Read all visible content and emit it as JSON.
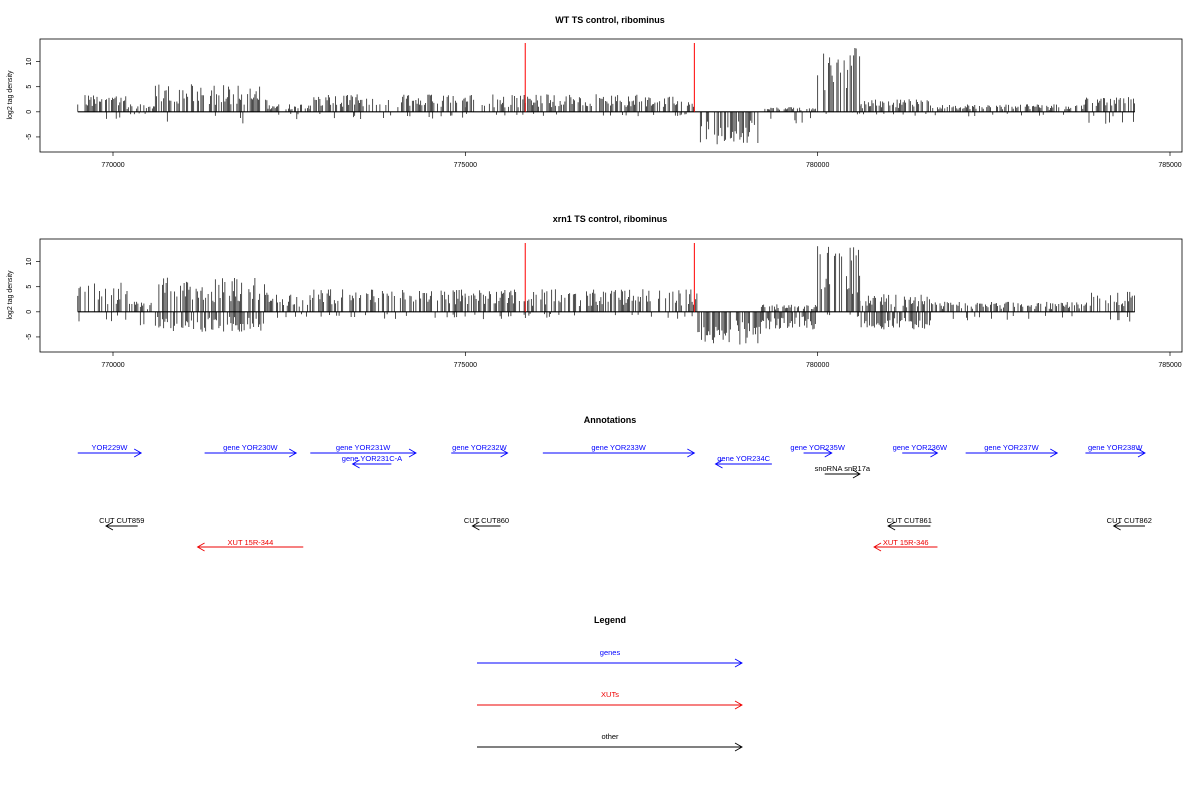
{
  "colors": {
    "genes": "#0000ff",
    "xuts": "#ee0000",
    "other": "#000000",
    "marker": "#ff0000",
    "trace": "#000000"
  },
  "chart_data": [
    {
      "type": "bar",
      "title": "WT TS control, ribominus",
      "ylabel": "log2 tag density",
      "xlim": [
        769500,
        784500
      ],
      "ylim": [
        -7,
        14
      ],
      "xticks": [
        "770000",
        "775000",
        "780000",
        "785000"
      ],
      "yticks": [
        "-5",
        "0",
        "5",
        "10"
      ],
      "markers": [
        775850,
        778250
      ],
      "note": "signal approximated by region amplitude (log2 density, positive = plus strand, negative = minus strand)",
      "regions": [
        {
          "start": 769500,
          "end": 770200,
          "max": 3.5,
          "min": -1.5
        },
        {
          "start": 770200,
          "end": 770600,
          "max": 1.5,
          "min": -0.5
        },
        {
          "start": 770600,
          "end": 772200,
          "max": 5.5,
          "min": -2.5
        },
        {
          "start": 772200,
          "end": 772800,
          "max": 1.5,
          "min": -1.5
        },
        {
          "start": 772800,
          "end": 775000,
          "max": 3.5,
          "min": -1.5
        },
        {
          "start": 775000,
          "end": 778300,
          "max": 3.5,
          "min": -1.0
        },
        {
          "start": 778300,
          "end": 779200,
          "max": 0.5,
          "min": -6.5
        },
        {
          "start": 779200,
          "end": 780000,
          "max": 1.0,
          "min": -3.0
        },
        {
          "start": 780000,
          "end": 780600,
          "max": 13.5,
          "min": -0.5
        },
        {
          "start": 780600,
          "end": 781600,
          "max": 2.5,
          "min": -1.0
        },
        {
          "start": 781600,
          "end": 783800,
          "max": 1.5,
          "min": -1.0
        },
        {
          "start": 783800,
          "end": 784500,
          "max": 3.0,
          "min": -2.5
        }
      ]
    },
    {
      "type": "bar",
      "title": "xrn1 TS control, ribominus",
      "ylabel": "log2 tag density",
      "xlim": [
        769500,
        784500
      ],
      "ylim": [
        -7,
        14
      ],
      "xticks": [
        "770000",
        "775000",
        "780000",
        "785000"
      ],
      "yticks": [
        "-5",
        "0",
        "5",
        "10"
      ],
      "markers": [
        775850,
        778250
      ],
      "note": "signal approximated by region amplitude (log2 density, positive = plus strand, negative = minus strand)",
      "regions": [
        {
          "start": 769500,
          "end": 770200,
          "max": 6.0,
          "min": -2.0
        },
        {
          "start": 770200,
          "end": 770600,
          "max": 2.0,
          "min": -3.0
        },
        {
          "start": 770600,
          "end": 772200,
          "max": 7.0,
          "min": -4.0
        },
        {
          "start": 772200,
          "end": 772800,
          "max": 3.5,
          "min": -1.5
        },
        {
          "start": 772800,
          "end": 775000,
          "max": 4.5,
          "min": -1.5
        },
        {
          "start": 775000,
          "end": 778300,
          "max": 4.5,
          "min": -1.5
        },
        {
          "start": 778300,
          "end": 779200,
          "max": 0.5,
          "min": -6.8
        },
        {
          "start": 779200,
          "end": 780000,
          "max": 1.5,
          "min": -3.5
        },
        {
          "start": 780000,
          "end": 780600,
          "max": 13.5,
          "min": -1.0
        },
        {
          "start": 780600,
          "end": 781600,
          "max": 3.5,
          "min": -3.5
        },
        {
          "start": 781600,
          "end": 783800,
          "max": 2.0,
          "min": -2.0
        },
        {
          "start": 783800,
          "end": 784500,
          "max": 4.0,
          "min": -2.0
        }
      ]
    }
  ],
  "annotations": {
    "title": "Annotations",
    "rows": {
      "genes": [
        {
          "label": "YOR229W",
          "start": 769500,
          "end": 770400,
          "strand": "+"
        },
        {
          "label": "gene YOR230W",
          "start": 771300,
          "end": 772600,
          "strand": "+"
        },
        {
          "label": "gene YOR231W",
          "start": 772800,
          "end": 774300,
          "strand": "+"
        },
        {
          "label": "gene YOR232W",
          "start": 774800,
          "end": 775600,
          "strand": "+"
        },
        {
          "label": "gene YOR233W",
          "start": 776100,
          "end": 778250,
          "strand": "+"
        },
        {
          "label": "gene YOR235W",
          "start": 779800,
          "end": 780200,
          "strand": "+"
        },
        {
          "label": "gene YOR236W",
          "start": 781200,
          "end": 781700,
          "strand": "+"
        },
        {
          "label": "gene YOR237W",
          "start": 782100,
          "end": 783400,
          "strand": "+"
        },
        {
          "label": "gene YOR238W",
          "start": 783800,
          "end": 784700,
          "strand": "+"
        }
      ],
      "genes_minus": [
        {
          "label": "gene YOR231C-A",
          "start": 773400,
          "end": 773950,
          "strand": "-"
        },
        {
          "label": "gene YOR234C",
          "start": 778550,
          "end": 779350,
          "strand": "-"
        }
      ],
      "other_plus": [
        {
          "label": "snoRNA snR17a",
          "start": 780100,
          "end": 780600,
          "strand": "+"
        }
      ],
      "cuts": [
        {
          "label": "CUT CUT859",
          "start": 769900,
          "end": 770350,
          "strand": "-"
        },
        {
          "label": "CUT CUT860",
          "start": 775100,
          "end": 775500,
          "strand": "-"
        },
        {
          "label": "CUT CUT861",
          "start": 781000,
          "end": 781600,
          "strand": "-"
        },
        {
          "label": "CUT CUT862",
          "start": 784200,
          "end": 784650,
          "strand": "-"
        }
      ],
      "xuts": [
        {
          "label": "XUT 15R-344",
          "start": 771200,
          "end": 772700,
          "strand": "-"
        },
        {
          "label": "XUT 15R-346",
          "start": 780800,
          "end": 781700,
          "strand": "-"
        }
      ]
    }
  },
  "legend": {
    "title": "Legend",
    "items": [
      {
        "label": "genes",
        "color": "#0000ff"
      },
      {
        "label": "XUTs",
        "color": "#ee0000"
      },
      {
        "label": "other",
        "color": "#000000"
      }
    ]
  }
}
